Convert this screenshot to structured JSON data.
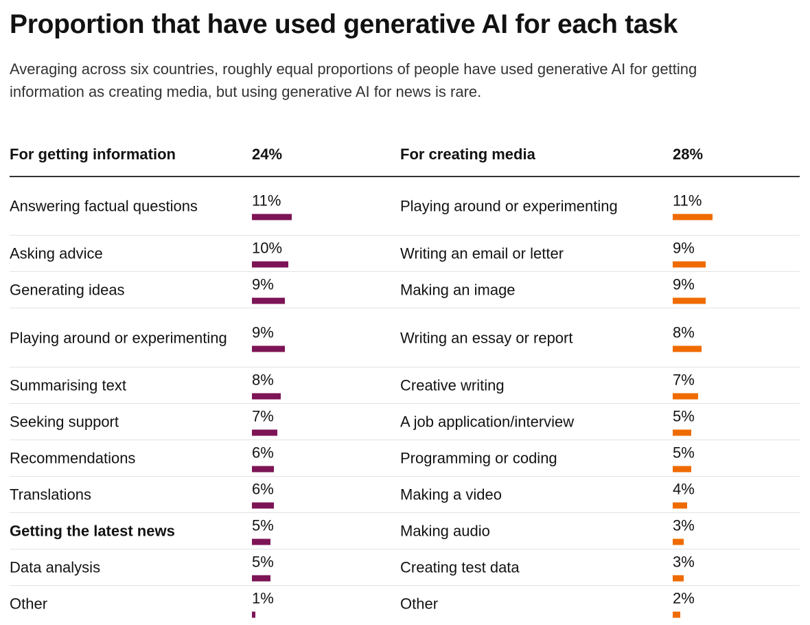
{
  "title": "Proportion that have used generative AI for each task",
  "subtitle": "Averaging across six countries, roughly equal proportions of people have used generative AI for getting information as creating media, but using generative AI for news is rare.",
  "colors": {
    "information": "#7d1456",
    "media": "#ef6b00"
  },
  "chart_data": {
    "type": "bar",
    "value_unit": "%",
    "groups": [
      {
        "name": "For getting information",
        "total_label": "24%",
        "total": 24,
        "categories": [
          "Answering factual questions",
          "Asking advice",
          "Generating ideas",
          "Playing around or experimenting",
          "Summarising text",
          "Seeking support",
          "Recommendations",
          "Translations",
          "Getting the latest news",
          "Data analysis",
          "Other"
        ],
        "labels": [
          "11%",
          "10%",
          "9%",
          "9%",
          "8%",
          "7%",
          "6%",
          "6%",
          "5%",
          "5%",
          "1%"
        ],
        "values": [
          11,
          10,
          9,
          9,
          8,
          7,
          6,
          6,
          5,
          5,
          1
        ],
        "highlight": [
          "Getting the latest news"
        ]
      },
      {
        "name": "For creating media",
        "total_label": "28%",
        "total": 28,
        "categories": [
          "Playing around or experimenting",
          "Writing an email or letter",
          "Making an image",
          "Writing an essay or report",
          "Creative writing",
          "A job application/interview",
          "Programming or coding",
          "Making a video",
          "Making audio",
          "Creating test data",
          "Other"
        ],
        "labels": [
          "11%",
          "9%",
          "9%",
          "8%",
          "7%",
          "5%",
          "5%",
          "4%",
          "3%",
          "3%",
          "2%"
        ],
        "values": [
          11,
          9,
          9,
          8,
          7,
          5,
          5,
          4,
          3,
          3,
          2
        ],
        "highlight": []
      }
    ]
  }
}
